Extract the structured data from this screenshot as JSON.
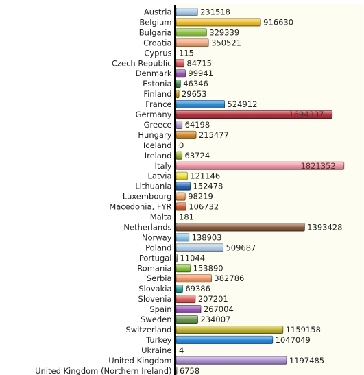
{
  "chart_data": {
    "type": "bar",
    "orientation": "horizontal",
    "title": "",
    "xlabel": "",
    "ylabel": "",
    "grid": false,
    "xlim": [
      0,
      1820000
    ],
    "categories": [
      "Austria",
      "Belgium",
      "Bulgaria",
      "Croatia",
      "Cyprus",
      "Czech Republic",
      "Denmark",
      "Estonia",
      "Finland",
      "France",
      "Germany",
      "Greece",
      "Hungary",
      "Iceland",
      "Ireland",
      "Italy",
      "Latvia",
      "Lithuania",
      "Luxembourg",
      "Macedonia, FYR",
      "Malta",
      "Netherlands",
      "Norway",
      "Poland",
      "Portugal",
      "Romania",
      "Serbia",
      "Slovakia",
      "Slovenia",
      "Spain",
      "Sweden",
      "Switzerland",
      "Turkey",
      "Ukraine",
      "United Kingdom",
      "United Kingdom (Northern Ireland)"
    ],
    "values": [
      231518,
      916630,
      329339,
      350521,
      115,
      84715,
      99941,
      46346,
      29653,
      524912,
      1694337,
      64198,
      215477,
      0,
      63724,
      1821352,
      121146,
      152478,
      98219,
      106732,
      181,
      1393428,
      138903,
      509687,
      11044,
      153890,
      382786,
      69386,
      207201,
      267004,
      234007,
      1159158,
      1047049,
      4,
      1197485,
      6758
    ],
    "value_labels": [
      "231518",
      "916630",
      "329339",
      "350521",
      "115",
      "84715",
      "99941",
      "46346",
      "29653",
      "524912",
      "1694337",
      "64198",
      "215477",
      "0",
      "63724",
      "1821352",
      "121146",
      "152478",
      "98219",
      "106732",
      "181",
      "1393428",
      "138903",
      "509687",
      "11044",
      "153890",
      "382786",
      "69386",
      "207201",
      "267004",
      "234007",
      "1159158",
      "1047049",
      "4",
      "1197485",
      "6758"
    ],
    "colors": [
      "#a9cbeb",
      "#f2c12e",
      "#8dc63f",
      "#f4a97c",
      "#c5c5c5",
      "#e05a60",
      "#9b59b6",
      "#3d8c40",
      "#d4a017",
      "#2e8fd9",
      "#b5343e",
      "#b39ddb",
      "#d98a2b",
      "#a0a0a0",
      "#a2ad2c",
      "#ef98a8",
      "#f5e33c",
      "#2a66b8",
      "#f5a55a",
      "#d65a30",
      "#c5c5c5",
      "#8a5a3c",
      "#8ec7ec",
      "#b5d0ec",
      "#c5c5c5",
      "#8cc63f",
      "#f59a6a",
      "#20a8a0",
      "#e06060",
      "#9b59b6",
      "#6a9a50",
      "#c2b530",
      "#2a8ee0",
      "#c5c5c5",
      "#ab90d0",
      "#c5c5c5"
    ],
    "inside_label_index": [
      10,
      15
    ],
    "background_color": "#fdfdf2",
    "axis_color": "#000000"
  }
}
